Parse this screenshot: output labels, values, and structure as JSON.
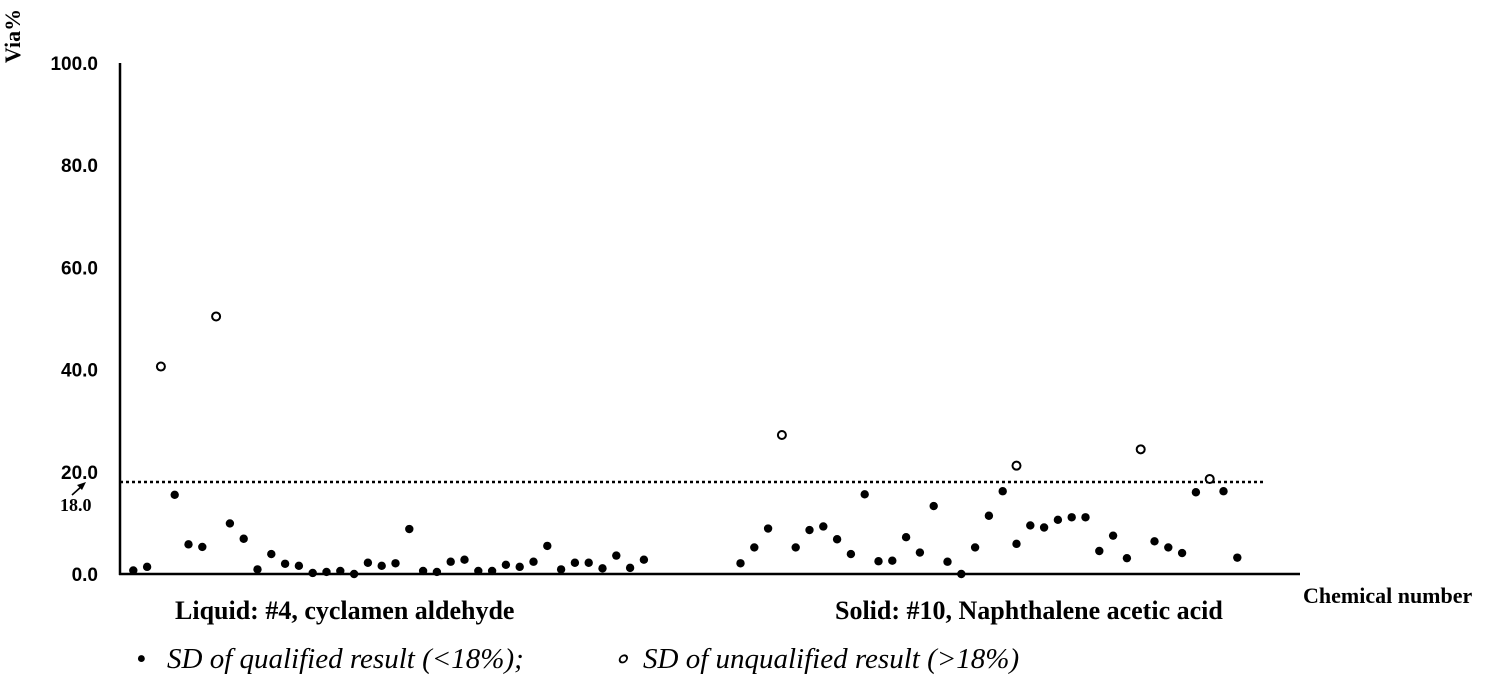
{
  "chart_data": {
    "type": "scatter",
    "ylabel": "Via%",
    "xlabel": "Chemical number",
    "ylim": [
      0,
      100
    ],
    "yticks": [
      "0.0",
      "20.0",
      "40.0",
      "60.0",
      "80.0",
      "100.0"
    ],
    "threshold": {
      "value": 18.0,
      "label": "18.0"
    },
    "groups": [
      {
        "label": "Liquid: #4, cyclamen aldehyde"
      },
      {
        "label": "Solid: #10, Naphthalene acetic acid"
      }
    ],
    "legend": {
      "qualified_marker": "•",
      "qualified_label": "SD of qualified result (<18%);",
      "unqualified_marker": "∘",
      "unqualified_label": "SD of unqualified result (>18%)"
    },
    "series": [
      {
        "name": "SD of qualified result (<18%)",
        "marker": "filled",
        "points": [
          [
            1,
            0.7
          ],
          [
            2,
            1.4
          ],
          [
            4,
            15.5
          ],
          [
            5,
            5.8
          ],
          [
            6,
            5.3
          ],
          [
            8,
            9.9
          ],
          [
            9,
            6.9
          ],
          [
            10,
            0.9
          ],
          [
            11,
            3.9
          ],
          [
            12,
            2.0
          ],
          [
            13,
            1.6
          ],
          [
            14,
            0.2
          ],
          [
            15,
            0.4
          ],
          [
            16,
            0.6
          ],
          [
            17,
            0.0
          ],
          [
            18,
            2.2
          ],
          [
            19,
            1.6
          ],
          [
            20,
            2.1
          ],
          [
            21,
            8.8
          ],
          [
            22,
            0.6
          ],
          [
            23,
            0.4
          ],
          [
            24,
            2.4
          ],
          [
            25,
            2.8
          ],
          [
            26,
            0.6
          ],
          [
            27,
            0.6
          ],
          [
            28,
            1.8
          ],
          [
            29,
            1.4
          ],
          [
            30,
            2.4
          ],
          [
            31,
            5.5
          ],
          [
            32,
            0.9
          ],
          [
            33,
            2.2
          ],
          [
            34,
            2.2
          ],
          [
            35,
            1.1
          ],
          [
            36,
            3.6
          ],
          [
            37,
            1.2
          ],
          [
            38,
            2.8
          ],
          [
            45,
            2.1
          ],
          [
            46,
            5.2
          ],
          [
            47,
            8.9
          ],
          [
            49,
            5.2
          ],
          [
            50,
            8.6
          ],
          [
            51,
            9.3
          ],
          [
            52,
            6.8
          ],
          [
            53,
            3.9
          ],
          [
            54,
            15.6
          ],
          [
            55,
            2.5
          ],
          [
            56,
            2.6
          ],
          [
            57,
            7.2
          ],
          [
            58,
            4.2
          ],
          [
            59,
            13.3
          ],
          [
            60,
            2.4
          ],
          [
            61,
            0.0
          ],
          [
            62,
            5.2
          ],
          [
            63,
            11.4
          ],
          [
            64,
            16.2
          ],
          [
            65,
            5.9
          ],
          [
            66,
            9.5
          ],
          [
            67,
            9.1
          ],
          [
            68,
            10.6
          ],
          [
            69,
            11.1
          ],
          [
            70,
            11.1
          ],
          [
            71,
            4.5
          ],
          [
            72,
            7.5
          ],
          [
            73,
            3.1
          ],
          [
            75,
            6.4
          ],
          [
            76,
            5.2
          ],
          [
            77,
            4.1
          ],
          [
            78,
            16.0
          ],
          [
            80,
            16.2
          ],
          [
            81,
            3.2
          ]
        ]
      },
      {
        "name": "SD of unqualified result (>18%)",
        "marker": "open",
        "points": [
          [
            3,
            40.6
          ],
          [
            7,
            50.4
          ],
          [
            48,
            27.2
          ],
          [
            65,
            21.2
          ],
          [
            74,
            24.4
          ],
          [
            79,
            18.6
          ]
        ]
      }
    ]
  }
}
